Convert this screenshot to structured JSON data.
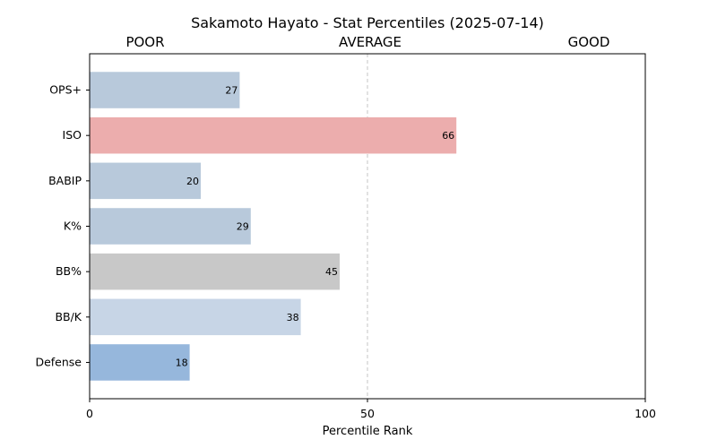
{
  "chart_data": {
    "type": "bar",
    "orientation": "horizontal",
    "title": "Sakamoto Hayato - Stat Percentiles (2025-07-14)",
    "xlabel": "Percentile Rank",
    "ylabel": "",
    "xlim": [
      0,
      100
    ],
    "xticks": [
      "0",
      "50",
      "100"
    ],
    "zone_labels": [
      "POOR",
      "AVERAGE",
      "GOOD"
    ],
    "reference_line": 50,
    "categories": [
      "OPS+",
      "ISO",
      "BABIP",
      "K%",
      "BB%",
      "BB/K",
      "Defense"
    ],
    "values": [
      27,
      66,
      20,
      29,
      45,
      38,
      18
    ],
    "colors": [
      "#b8c9db",
      "#ecadad",
      "#b8c9db",
      "#b8c9db",
      "#c8c8c8",
      "#c7d5e6",
      "#96b7dc"
    ],
    "grid": false,
    "legend": "none"
  }
}
